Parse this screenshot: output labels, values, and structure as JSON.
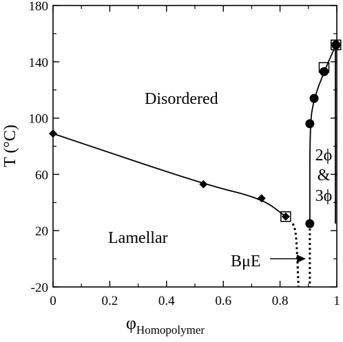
{
  "chart_data": {
    "type": "line",
    "title": "",
    "xlabel_symbol": "φ",
    "xlabel_subscript": "Homopolymer",
    "ylabel": "T (°C)",
    "xlim": [
      0,
      1
    ],
    "ylim": [
      -20,
      180
    ],
    "xticks": [
      0,
      0.2,
      0.4,
      0.6,
      0.8,
      1
    ],
    "xtick_labels": [
      "0",
      "0.2",
      "0.4",
      "0.6",
      "0.8",
      "1"
    ],
    "yticks": [
      -20,
      20,
      60,
      100,
      140,
      180
    ],
    "ytick_labels": [
      "-20",
      "20",
      "60",
      "100",
      "140",
      "180"
    ],
    "grid": false,
    "series": [
      {
        "marker": "diamond",
        "style": "solid",
        "points": [
          [
            0,
            89
          ],
          [
            0.53,
            53
          ],
          [
            0.735,
            43
          ],
          [
            0.82,
            30
          ]
        ]
      },
      {
        "marker": "circle",
        "style": "solid",
        "points": [
          [
            0.905,
            25
          ],
          [
            0.905,
            96
          ],
          [
            0.92,
            114
          ],
          [
            0.955,
            133
          ],
          [
            0.997,
            152
          ]
        ]
      },
      {
        "marker": "none",
        "style": "solid",
        "points": [
          [
            0.995,
            152
          ],
          [
            0.995,
            25
          ]
        ]
      },
      {
        "marker": "none",
        "style": "dotted",
        "points": [
          [
            0.845,
            25
          ],
          [
            0.855,
            20
          ],
          [
            0.86,
            5
          ],
          [
            0.865,
            -20
          ]
        ]
      },
      {
        "marker": "none",
        "style": "dotted",
        "points": [
          [
            0.905,
            25
          ],
          [
            0.905,
            -20
          ]
        ]
      }
    ],
    "open_square_markers": [
      [
        0.82,
        30
      ],
      [
        0.955,
        136
      ],
      [
        0.997,
        152
      ]
    ],
    "annotations": {
      "disordered": "Disordered",
      "lamellar": "Lamellar",
      "bue": "BμE",
      "two_phase_1": "2ϕ",
      "two_phase_2": "&",
      "two_phase_3": "3ϕ"
    }
  }
}
